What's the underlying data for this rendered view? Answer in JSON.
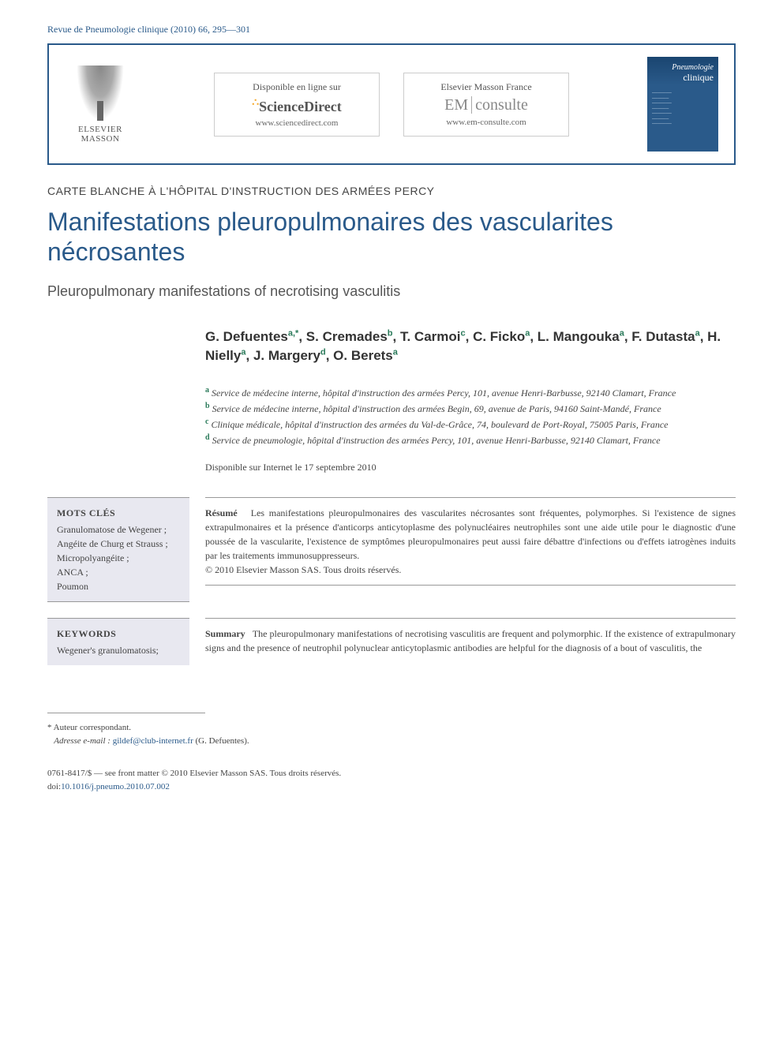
{
  "citation": "Revue de Pneumologie clinique (2010) 66, 295—301",
  "publisher": {
    "name1": "ELSEVIER",
    "name2": "MASSON"
  },
  "platforms": [
    {
      "top": "Disponible en ligne sur",
      "brand": "ScienceDirect",
      "url": "www.sciencedirect.com",
      "kind": "sd"
    },
    {
      "top": "Elsevier Masson France",
      "brand_em": "EM",
      "brand_rest": "consulte",
      "url": "www.em-consulte.com",
      "kind": "em"
    }
  ],
  "journal_cover": {
    "line1": "Pneumologie",
    "line2": "clinique"
  },
  "section_label": "CARTE BLANCHE À L'HÔPITAL D'INSTRUCTION DES ARMÉES PERCY",
  "title": "Manifestations pleuropulmonaires des vascularites nécrosantes",
  "subtitle": "Pleuropulmonary manifestations of necrotising vasculitis",
  "authors": [
    {
      "name": "G. Defuentes",
      "sup": "a,*"
    },
    {
      "name": "S. Cremades",
      "sup": "b"
    },
    {
      "name": "T. Carmoi",
      "sup": "c"
    },
    {
      "name": "C. Ficko",
      "sup": "a"
    },
    {
      "name": "L. Mangouka",
      "sup": "a"
    },
    {
      "name": "F. Dutasta",
      "sup": "a"
    },
    {
      "name": "H. Nielly",
      "sup": "a"
    },
    {
      "name": "J. Margery",
      "sup": "d"
    },
    {
      "name": "O. Berets",
      "sup": "a"
    }
  ],
  "affiliations": [
    {
      "sup": "a",
      "text": "Service de médecine interne, hôpital d'instruction des armées Percy, 101, avenue Henri-Barbusse, 92140 Clamart, France"
    },
    {
      "sup": "b",
      "text": "Service de médecine interne, hôpital d'instruction des armées Begin, 69, avenue de Paris, 94160 Saint-Mandé, France"
    },
    {
      "sup": "c",
      "text": "Clinique médicale, hôpital d'instruction des armées du Val-de-Grâce, 74, boulevard de Port-Royal, 75005 Paris, France"
    },
    {
      "sup": "d",
      "text": "Service de pneumologie, hôpital d'instruction des armées Percy, 101, avenue Henri-Barbusse, 92140 Clamart, France"
    }
  ],
  "availability": "Disponible sur Internet le 17 septembre 2010",
  "abstracts": [
    {
      "kw_head": "MOTS CLÉS",
      "keywords": "Granulomatose de Wegener ;\nAngéite de Churg et Strauss ;\nMicropolyangéite ;\nANCA ;\nPoumon",
      "ab_head": "Résumé",
      "body": "Les manifestations pleuropulmonaires des vascularites nécrosantes sont fréquentes, polymorphes. Si l'existence de signes extrapulmonaires et la présence d'anticorps anticytoplasme des polynucléaires neutrophiles sont une aide utile pour le diagnostic d'une poussée de la vascularite, l'existence de symptômes pleuropulmonaires peut aussi faire débattre d'infections ou d'effets iatrogènes induits par les traitements immunosuppresseurs.",
      "copyright": "© 2010 Elsevier Masson SAS. Tous droits réservés."
    },
    {
      "kw_head": "KEYWORDS",
      "keywords": "Wegener's granulomatosis;",
      "ab_head": "Summary",
      "body": "The pleuropulmonary manifestations of necrotising vasculitis are frequent and polymorphic. If the existence of extrapulmonary signs and the presence of neutrophil polynuclear anticytoplasmic antibodies are helpful for the diagnosis of a bout of vasculitis, the",
      "copyright": ""
    }
  ],
  "footnotes": {
    "corresp_label": "* Auteur correspondant.",
    "email_label": "Adresse e-mail :",
    "email": "gildef@club-internet.fr",
    "email_person": "(G. Defuentes)."
  },
  "copyright_block": {
    "line1": "0761-8417/$ — see front matter © 2010 Elsevier Masson SAS. Tous droits réservés.",
    "doi_label": "doi:",
    "doi": "10.1016/j.pneumo.2010.07.002"
  },
  "colors": {
    "brand_blue": "#2a5a8a",
    "sup_green": "#2a7a5a",
    "kw_bg": "#e8e8f0",
    "text": "#444444"
  }
}
